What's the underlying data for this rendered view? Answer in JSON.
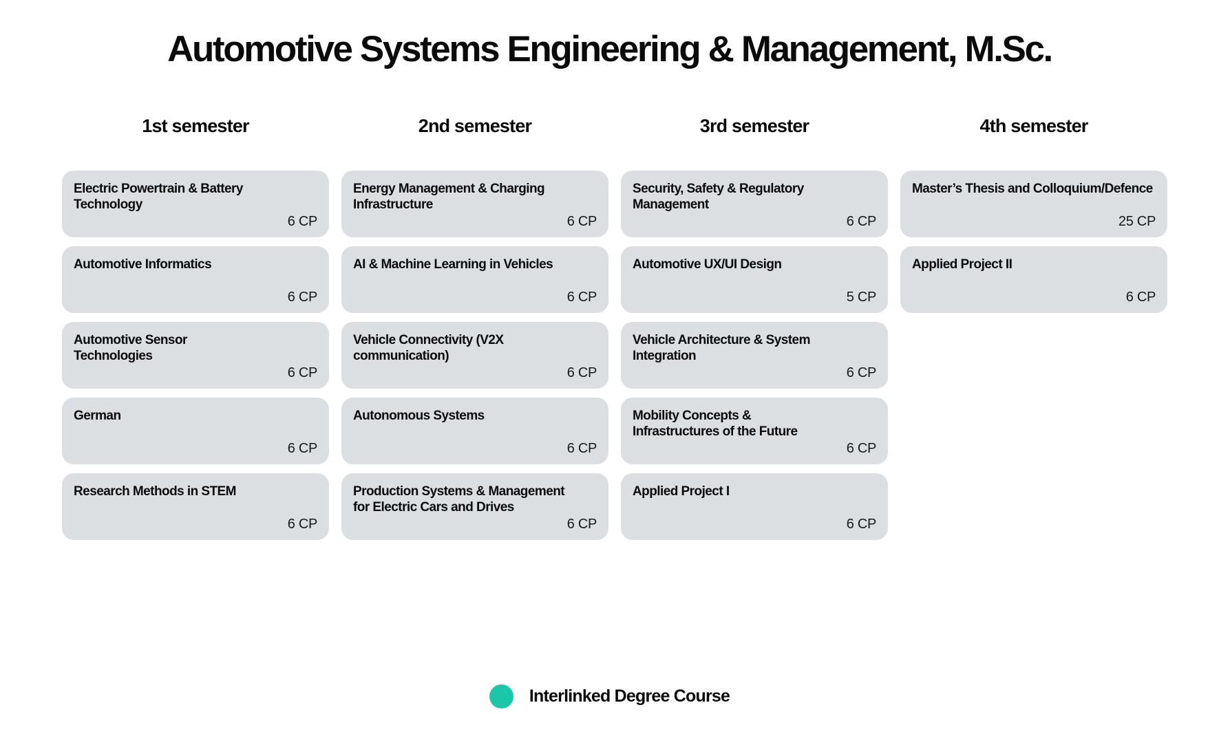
{
  "page": {
    "title": "Automotive Systems Engineering & Management, M.Sc."
  },
  "colors": {
    "page_bg": "#ffffff",
    "card_bg": "#dcdfe1",
    "text": "#0b0b0c",
    "legend_dot": "#1cc6a8"
  },
  "semesters": [
    {
      "label": "1st semester",
      "courses": [
        {
          "name": "Electric Powertrain & Battery\nTechnology",
          "credits": "6 CP"
        },
        {
          "name": "Automotive Informatics",
          "credits": "6 CP"
        },
        {
          "name": "Automotive Sensor\nTechnologies",
          "credits": "6 CP"
        },
        {
          "name": "German",
          "credits": "6 CP"
        },
        {
          "name": "Research Methods in STEM",
          "credits": "6 CP"
        }
      ]
    },
    {
      "label": "2nd semester",
      "courses": [
        {
          "name": "Energy Management & Charging\nInfrastructure",
          "credits": "6 CP"
        },
        {
          "name": "AI & Machine Learning in Vehicles",
          "credits": "6 CP"
        },
        {
          "name": "Vehicle Connectivity (V2X\ncommunication)",
          "credits": "6 CP"
        },
        {
          "name": "Autonomous Systems",
          "credits": "6 CP"
        },
        {
          "name": "Production Systems & Management\nfor Electric Cars and Drives",
          "credits": "6 CP"
        }
      ]
    },
    {
      "label": "3rd semester",
      "courses": [
        {
          "name": "Security, Safety & Regulatory\nManagement",
          "credits": "6 CP"
        },
        {
          "name": "Automotive UX/UI Design",
          "credits": "5 CP"
        },
        {
          "name": "Vehicle Architecture & System\nIntegration",
          "credits": "6 CP"
        },
        {
          "name": "Mobility Concepts &\nInfrastructures of the Future",
          "credits": "6 CP"
        },
        {
          "name": "Applied Project I",
          "credits": "6 CP"
        }
      ]
    },
    {
      "label": "4th semester",
      "courses": [
        {
          "name": "Master’s Thesis and Colloquium/Defence",
          "credits": "25 CP"
        },
        {
          "name": "Applied Project II",
          "credits": "6 CP"
        }
      ]
    }
  ],
  "legend": {
    "label": "Interlinked Degree Course"
  }
}
